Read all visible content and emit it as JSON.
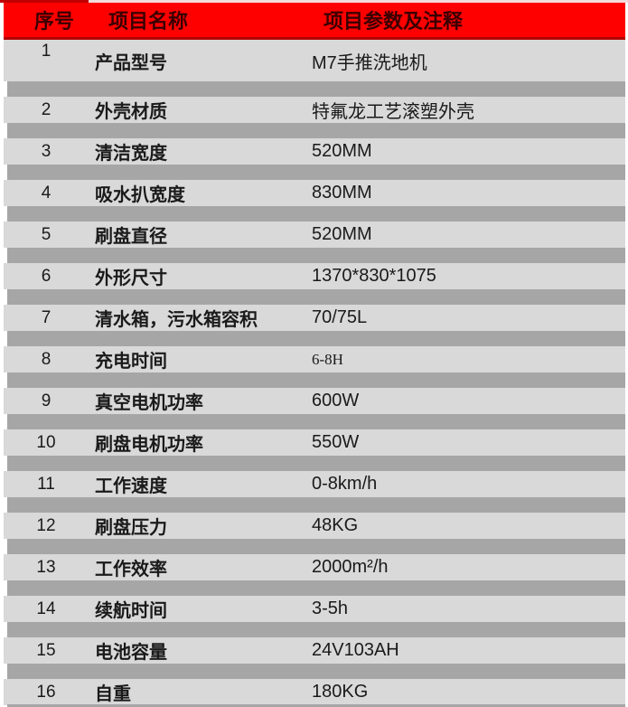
{
  "table": {
    "columns": [
      "序号",
      "项目名称",
      "项目参数及注释"
    ],
    "rows": [
      {
        "num": "1",
        "label": "产品型号",
        "value": "M7手推洗地机"
      },
      {
        "num": "2",
        "label": "外壳材质",
        "value": "特氟龙工艺滚塑外壳"
      },
      {
        "num": "3",
        "label": "清洁宽度",
        "value": "520MM"
      },
      {
        "num": "4",
        "label": "吸水扒宽度",
        "value": "830MM"
      },
      {
        "num": "5",
        "label": "刷盘直径",
        "value": "520MM"
      },
      {
        "num": "6",
        "label": "外形尺寸",
        "value": "1370*830*1075"
      },
      {
        "num": "7",
        "label": "清水箱，污水箱容积",
        "value": "70/75L"
      },
      {
        "num": "8",
        "label": "充电时间",
        "value": "6-8H",
        "value_font": "serif"
      },
      {
        "num": "9",
        "label": "真空电机功率",
        "value": "600W"
      },
      {
        "num": "10",
        "label": "刷盘电机功率",
        "value": "550W"
      },
      {
        "num": "11",
        "label": "工作速度",
        "value": "0-8km/h"
      },
      {
        "num": "12",
        "label": "刷盘压力",
        "value": "48KG"
      },
      {
        "num": "13",
        "label": "工作效率",
        "value": "2000m²/h"
      },
      {
        "num": "14",
        "label": "续航时间",
        "value": "3-5h"
      },
      {
        "num": "15",
        "label": "电池容量",
        "value": "24V103AH"
      },
      {
        "num": "16",
        "label": "自重",
        "value": "180KG"
      }
    ]
  },
  "colors": {
    "header_bg": "#fe0000",
    "header_text": "#3a0000",
    "header_border": "#b30000",
    "row_bg": "#d9d9d9",
    "separator_bg": "#a6a6a6",
    "top_strip_left": "#c00000",
    "top_strip_right": "#f2dcdb",
    "text": "#1a1a1a"
  }
}
